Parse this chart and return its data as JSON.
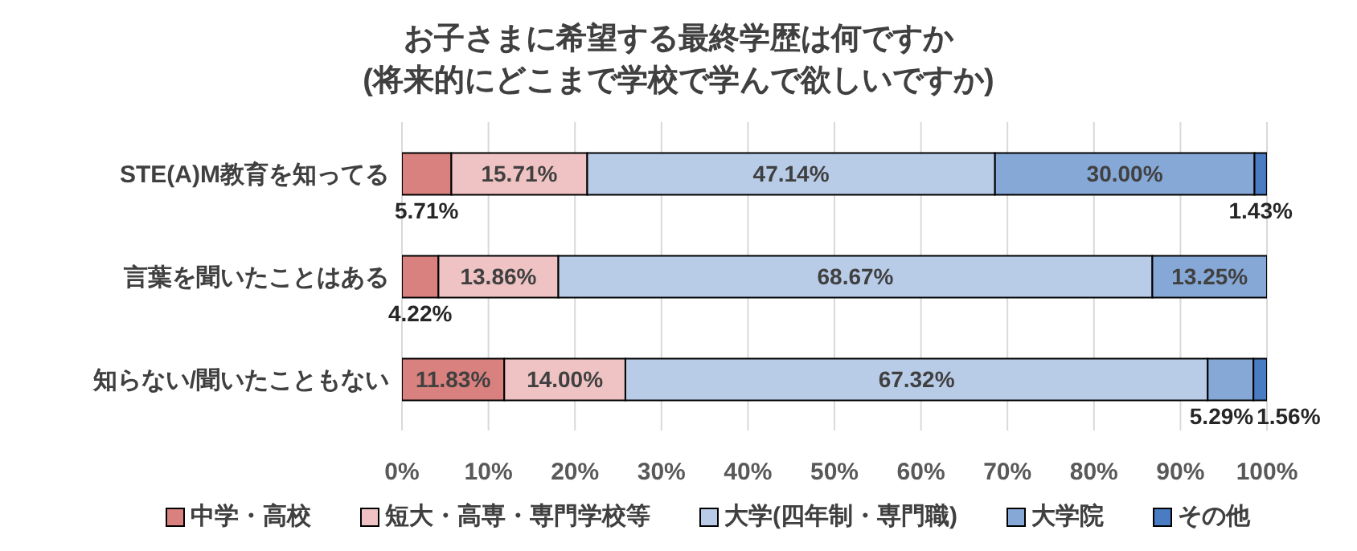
{
  "chart_data": {
    "type": "bar",
    "orientation": "horizontal",
    "stacked": true,
    "title": "お子さまに希望する最終学歴は何ですか\n(将来的にどこまで学校で学んで欲しいですか)",
    "categories": [
      "STE(A)M教育を知ってる",
      "言葉を聞いたことはある",
      "知らない/聞いたこともない"
    ],
    "series": [
      {
        "name": "中学・高校",
        "color": "#d9817f",
        "values": [
          5.71,
          4.22,
          11.83
        ],
        "value_labels": [
          "5.71%",
          "4.22%",
          "11.83%"
        ]
      },
      {
        "name": "短大・高専・専門学校等",
        "color": "#efc3c3",
        "values": [
          15.71,
          13.86,
          14.0
        ],
        "value_labels": [
          "15.71%",
          "13.86%",
          "14.00%"
        ]
      },
      {
        "name": "大学(四年制・専門職)",
        "color": "#b8cce8",
        "values": [
          47.14,
          68.67,
          67.32
        ],
        "value_labels": [
          "47.14%",
          "68.67%",
          "67.32%"
        ]
      },
      {
        "name": "大学院",
        "color": "#86a8d6",
        "values": [
          30.0,
          13.25,
          5.29
        ],
        "value_labels": [
          "30.00%",
          "13.25%",
          "5.29%"
        ]
      },
      {
        "name": "その他",
        "color": "#4a7cc4",
        "values": [
          1.43,
          null,
          1.56
        ],
        "value_labels": [
          "1.43%",
          null,
          "1.56%"
        ]
      }
    ],
    "xlim": [
      0,
      100
    ],
    "xticks": [
      {
        "value": 0,
        "label": "0%"
      },
      {
        "value": 10,
        "label": "10%"
      },
      {
        "value": 20,
        "label": "20%"
      },
      {
        "value": 30,
        "label": "30%"
      },
      {
        "value": 40,
        "label": "40%"
      },
      {
        "value": 50,
        "label": "50%"
      },
      {
        "value": 60,
        "label": "60%"
      },
      {
        "value": 70,
        "label": "70%"
      },
      {
        "value": 80,
        "label": "80%"
      },
      {
        "value": 90,
        "label": "90%"
      },
      {
        "value": 100,
        "label": "100%"
      }
    ],
    "grid": "x",
    "legend": "bottom"
  }
}
